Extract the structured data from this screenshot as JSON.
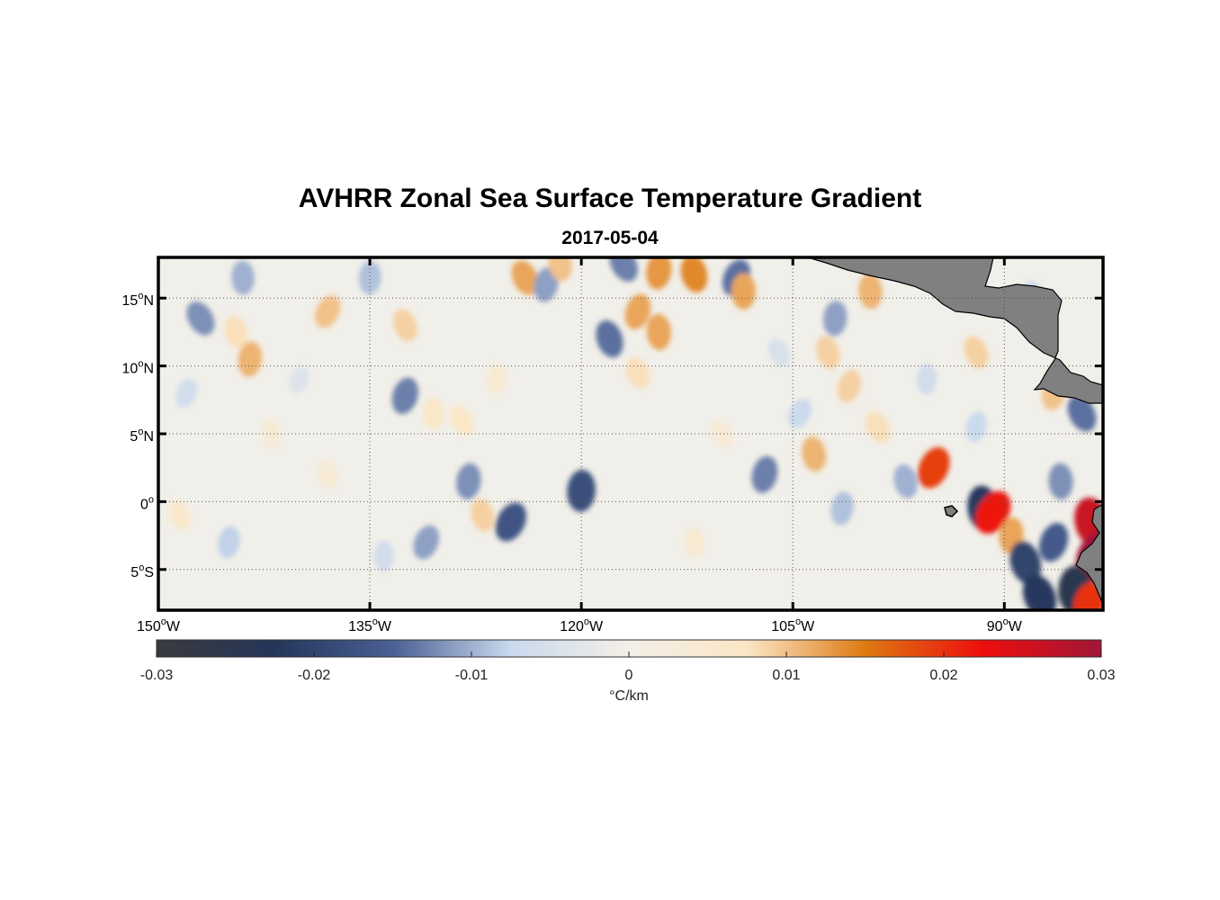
{
  "header": {
    "title": "AVHRR Zonal Sea Surface Temperature Gradient",
    "date": "2017-05-04"
  },
  "map": {
    "lon_range": [
      -150,
      -83
    ],
    "lat_range": [
      -8,
      18
    ],
    "lat_ticks": [
      {
        "value": 15,
        "num": "15",
        "hemi": "N"
      },
      {
        "value": 10,
        "num": "10",
        "hemi": "N"
      },
      {
        "value": 5,
        "num": "5",
        "hemi": "N"
      },
      {
        "value": 0,
        "num": "0",
        "hemi": ""
      },
      {
        "value": -5,
        "num": "5",
        "hemi": "S"
      }
    ],
    "lon_ticks": [
      {
        "value": -150,
        "num": "150",
        "hemi": "W"
      },
      {
        "value": -135,
        "num": "135",
        "hemi": "W"
      },
      {
        "value": -120,
        "num": "120",
        "hemi": "W"
      },
      {
        "value": -105,
        "num": "105",
        "hemi": "W"
      },
      {
        "value": -90,
        "num": "90",
        "hemi": "W"
      }
    ],
    "degree_symbol": "o",
    "land_color": "#808080",
    "features": [
      {
        "lon": -147,
        "lat": 13.5,
        "v": -0.012
      },
      {
        "lon": -143.5,
        "lat": 10.5,
        "v": 0.011
      },
      {
        "lon": -144.5,
        "lat": 12.5,
        "v": 0.008
      },
      {
        "lon": -148,
        "lat": 8,
        "v": -0.006
      },
      {
        "lon": -144,
        "lat": 16.5,
        "v": -0.01
      },
      {
        "lon": -148.5,
        "lat": -1,
        "v": 0.006
      },
      {
        "lon": -145,
        "lat": -3,
        "v": -0.008
      },
      {
        "lon": -142,
        "lat": 5,
        "v": 0.004
      },
      {
        "lon": -138,
        "lat": 14,
        "v": 0.01
      },
      {
        "lon": -135,
        "lat": 16.5,
        "v": -0.009
      },
      {
        "lon": -132.5,
        "lat": 13,
        "v": 0.009
      },
      {
        "lon": -132.5,
        "lat": 7.8,
        "v": -0.013
      },
      {
        "lon": -130.5,
        "lat": 6.5,
        "v": 0.007
      },
      {
        "lon": -128.5,
        "lat": 6,
        "v": 0.007
      },
      {
        "lon": -128,
        "lat": 1.5,
        "v": -0.012
      },
      {
        "lon": -127,
        "lat": -1,
        "v": 0.009
      },
      {
        "lon": -131,
        "lat": -3,
        "v": -0.011
      },
      {
        "lon": -134,
        "lat": -4,
        "v": -0.006
      },
      {
        "lon": -124,
        "lat": 16.5,
        "v": 0.012
      },
      {
        "lon": -122.5,
        "lat": 16,
        "v": -0.011
      },
      {
        "lon": -121.5,
        "lat": 17.5,
        "v": 0.01
      },
      {
        "lon": -125,
        "lat": -1.5,
        "v": -0.017
      },
      {
        "lon": -120,
        "lat": 0.8,
        "v": -0.018
      },
      {
        "lon": -118,
        "lat": 12,
        "v": -0.014
      },
      {
        "lon": -116,
        "lat": 14,
        "v": 0.012
      },
      {
        "lon": -114.5,
        "lat": 12.5,
        "v": 0.012
      },
      {
        "lon": -117,
        "lat": 17.5,
        "v": -0.013
      },
      {
        "lon": -114.5,
        "lat": 17,
        "v": 0.013
      },
      {
        "lon": -112,
        "lat": 16.8,
        "v": 0.014
      },
      {
        "lon": -109,
        "lat": 16.5,
        "v": -0.014
      },
      {
        "lon": -108.5,
        "lat": 15.5,
        "v": 0.012
      },
      {
        "lon": -116,
        "lat": 9.5,
        "v": 0.008
      },
      {
        "lon": -107,
        "lat": 2,
        "v": -0.013
      },
      {
        "lon": -103.5,
        "lat": 3.5,
        "v": 0.011
      },
      {
        "lon": -104.5,
        "lat": 6.5,
        "v": -0.007
      },
      {
        "lon": -102,
        "lat": 13.5,
        "v": -0.011
      },
      {
        "lon": -102.5,
        "lat": 11,
        "v": 0.009
      },
      {
        "lon": -101,
        "lat": 8.5,
        "v": 0.009
      },
      {
        "lon": -99.5,
        "lat": 15.5,
        "v": 0.011
      },
      {
        "lon": -99,
        "lat": 5.5,
        "v": 0.008
      },
      {
        "lon": -101.5,
        "lat": -0.5,
        "v": -0.009
      },
      {
        "lon": -97,
        "lat": 1.5,
        "v": -0.01
      },
      {
        "lon": -95,
        "lat": 2.5,
        "v": 0.019
      },
      {
        "lon": -95.5,
        "lat": 9,
        "v": -0.006
      },
      {
        "lon": -92,
        "lat": 11,
        "v": 0.009
      },
      {
        "lon": -92,
        "lat": 5.5,
        "v": -0.007
      },
      {
        "lon": -91.5,
        "lat": -0.5,
        "v": -0.022
      },
      {
        "lon": -90.8,
        "lat": -0.8,
        "v": 0.022
      },
      {
        "lon": -89.5,
        "lat": -2.5,
        "v": 0.012
      },
      {
        "lon": -88.5,
        "lat": -4.5,
        "v": -0.02
      },
      {
        "lon": -86.5,
        "lat": -3,
        "v": -0.016
      },
      {
        "lon": -86,
        "lat": 1.5,
        "v": -0.012
      },
      {
        "lon": -84.5,
        "lat": 6.5,
        "v": -0.014
      },
      {
        "lon": -86.5,
        "lat": 8,
        "v": 0.01
      },
      {
        "lon": -83.8,
        "lat": -1.5,
        "v": 0.026
      },
      {
        "lon": -83.5,
        "lat": -4,
        "v": 0.03
      },
      {
        "lon": -85,
        "lat": -6.5,
        "v": -0.025
      },
      {
        "lon": -87.5,
        "lat": -7,
        "v": -0.022
      },
      {
        "lon": -84,
        "lat": -7.5,
        "v": 0.02
      },
      {
        "lon": -88,
        "lat": 15,
        "v": -0.008
      },
      {
        "lon": -110,
        "lat": 5,
        "v": 0.004
      },
      {
        "lon": -126,
        "lat": 9,
        "v": 0.005
      },
      {
        "lon": -138,
        "lat": 2,
        "v": 0.004
      },
      {
        "lon": -140,
        "lat": 9,
        "v": -0.004
      },
      {
        "lon": -112,
        "lat": -3,
        "v": 0.005
      },
      {
        "lon": -106,
        "lat": 11,
        "v": -0.005
      }
    ]
  },
  "colorbar": {
    "min": -0.03,
    "max": 0.03,
    "ticks": [
      "-0.03",
      "-0.02",
      "-0.01",
      "0",
      "0.01",
      "0.02",
      "0.03"
    ],
    "tick_values": [
      -0.03,
      -0.02,
      -0.01,
      0,
      0.01,
      0.02,
      0.03
    ],
    "unit_label": "°C/km",
    "colors": [
      "#3a3a3e",
      "#243659",
      "#4a5f93",
      "#c9d9ee",
      "#f3efe6",
      "#fbe6c6",
      "#dd7a12",
      "#ed0e0e",
      "#a01637"
    ]
  }
}
